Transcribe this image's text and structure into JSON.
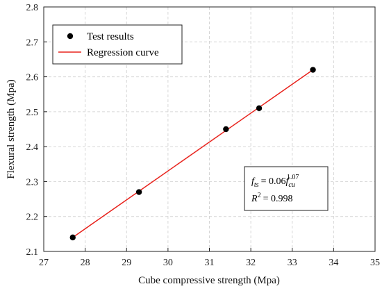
{
  "chart_data": {
    "type": "scatter",
    "xlabel": "Cube compressive strength (Mpa)",
    "ylabel": "Flexural strength (Mpa)",
    "xlim": [
      27,
      35
    ],
    "ylim": [
      2.1,
      2.8
    ],
    "x_ticks": [
      "27",
      "28",
      "29",
      "30",
      "31",
      "32",
      "33",
      "34",
      "35"
    ],
    "y_ticks": [
      "2.1",
      "2.2",
      "2.3",
      "2.4",
      "2.5",
      "2.6",
      "2.7",
      "2.8"
    ],
    "grid": true,
    "legend_position": "top-left",
    "series": [
      {
        "name": "Test results",
        "kind": "scatter",
        "color": "#000000",
        "x": [
          27.7,
          29.3,
          31.4,
          32.2,
          33.5
        ],
        "y": [
          2.14,
          2.27,
          2.45,
          2.51,
          2.62
        ]
      },
      {
        "name": "Regression curve",
        "kind": "line",
        "color": "#e8231d",
        "x": [
          27.7,
          33.5
        ],
        "y": [
          2.14,
          2.62
        ]
      }
    ],
    "equation": {
      "f_symbol": "f",
      "f_subscript": "ts",
      "equals": "= 0.06",
      "fc_symbol": "f",
      "fc_subscript": "cu",
      "exponent": "1.07",
      "r_symbol": "R",
      "r_exponent": "2",
      "r_value": "= 0.998"
    }
  }
}
